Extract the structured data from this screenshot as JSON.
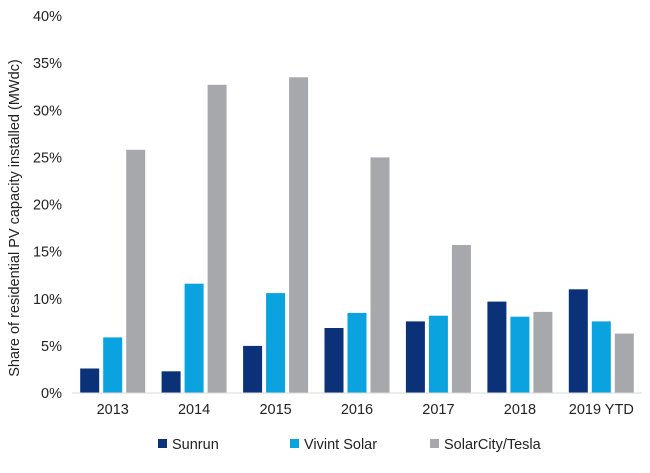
{
  "chart_data": {
    "type": "bar",
    "title": "",
    "xlabel": "",
    "ylabel": "Share of residential PV capacity installed (MWdc)",
    "ylim": [
      0,
      40
    ],
    "yticks": [
      "0%",
      "5%",
      "10%",
      "15%",
      "20%",
      "25%",
      "30%",
      "35%",
      "40%"
    ],
    "grid": false,
    "legend_position": "bottom",
    "categories": [
      "2013",
      "2014",
      "2015",
      "2016",
      "2017",
      "2018",
      "2019 YTD"
    ],
    "series": [
      {
        "name": "Sunrun",
        "color": "#0b3278",
        "values": [
          2.6,
          2.3,
          5.0,
          6.9,
          7.6,
          9.7,
          11.0
        ]
      },
      {
        "name": "Vivint Solar",
        "color": "#0aa2df",
        "values": [
          5.9,
          11.6,
          10.6,
          8.5,
          8.2,
          8.1,
          7.6
        ]
      },
      {
        "name": "SolarCity/Tesla",
        "color": "#a6a8ab",
        "values": [
          25.8,
          32.7,
          33.5,
          25.0,
          15.7,
          8.6,
          6.3
        ]
      }
    ]
  }
}
